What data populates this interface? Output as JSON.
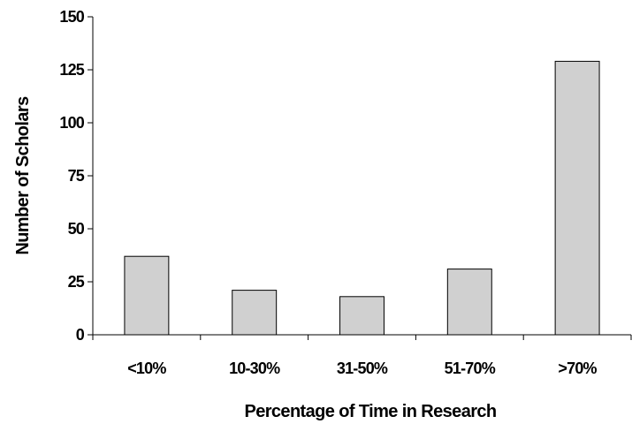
{
  "chart_data": {
    "type": "bar",
    "title": "",
    "xlabel": "Percentage of Time in Research",
    "ylabel": "Number of Scholars",
    "categories": [
      "<10%",
      "10-30%",
      "31-50%",
      "51-70%",
      ">70%"
    ],
    "values": [
      37,
      21,
      18,
      31,
      129
    ],
    "ylim": [
      0,
      150
    ],
    "yticks": [
      "0",
      "25",
      "50",
      "75",
      "100",
      "125",
      "150"
    ],
    "grid": false,
    "legend": "none",
    "bar_color": "#d0d0d0",
    "bar_edge_color": "#000000"
  }
}
